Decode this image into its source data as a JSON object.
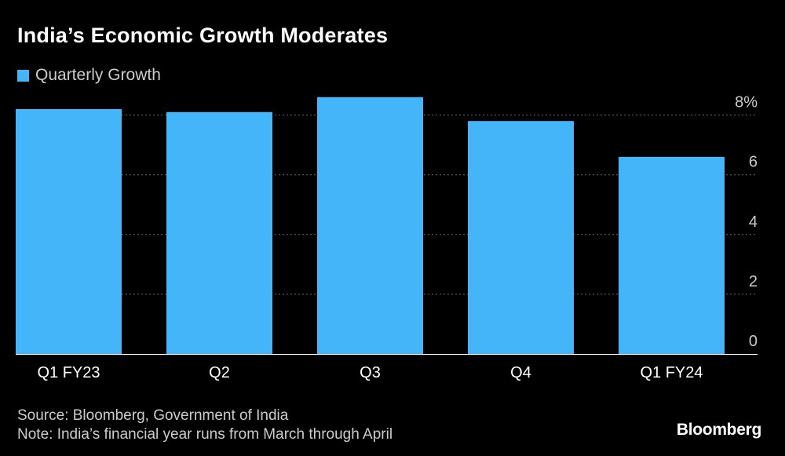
{
  "title": "India’s Economic Growth Moderates",
  "legend": {
    "label": "Quarterly Growth",
    "color": "#45b5fa"
  },
  "footer": {
    "source": "Source: Bloomberg, Government of India",
    "note": "Note: India’s financial year runs from March through April"
  },
  "logo": "Bloomberg",
  "chart_data": {
    "type": "bar",
    "title": "India’s Economic Growth Moderates",
    "categories": [
      "Q1 FY23",
      "Q2",
      "Q3",
      "Q4",
      "Q1 FY24"
    ],
    "series": [
      {
        "name": "Quarterly Growth",
        "values": [
          8.2,
          8.1,
          8.6,
          7.8,
          6.6
        ],
        "color": "#45b5fa"
      }
    ],
    "y_ticks": [
      "0",
      "2",
      "4",
      "6",
      "8%"
    ],
    "y_tick_values": [
      0,
      2,
      4,
      6,
      8
    ],
    "ylim": [
      0,
      8.6
    ],
    "y_axis_side": "right",
    "grid": "dotted horizontal",
    "legend_position": "top-left",
    "xlabel": "",
    "ylabel": ""
  }
}
